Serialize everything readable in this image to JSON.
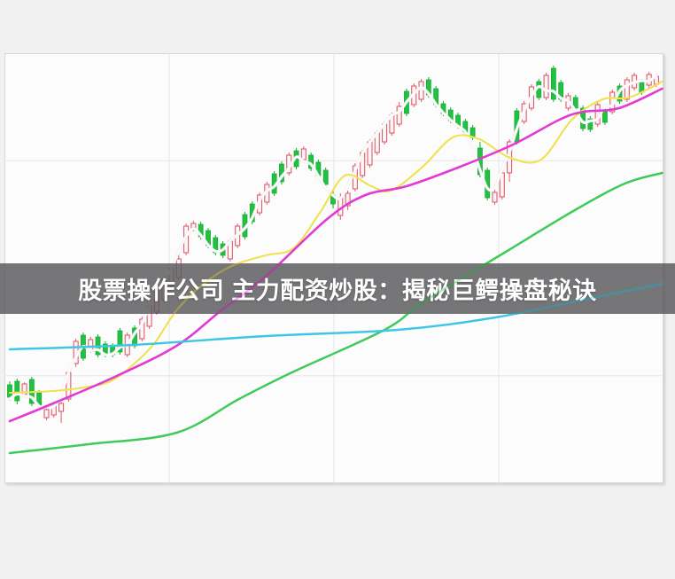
{
  "banner": {
    "text": "股票操作公司 主力配资炒股：揭秘巨鳄操盘秘诀",
    "bg_color": "rgba(88,88,90,0.82)",
    "text_color": "#ffffff"
  },
  "chart_data": {
    "type": "candlestick",
    "title": "",
    "xlabel": "",
    "ylabel": "",
    "x_count": 89,
    "ylim": [
      0,
      485
    ],
    "grid": {
      "h_divisions": 4,
      "v_divisions": 4,
      "color": "#e6e6e6"
    },
    "legend_position": "none",
    "style": {
      "up_color": "#e15c6c",
      "up_fill": "#fdf6f6",
      "down_color": "#14ae33",
      "down_fill": "#22c144",
      "up_style": "hollow",
      "down_style": "filled",
      "plot_bg": "#fcfcfc",
      "page_bg": "#f1f1f1"
    },
    "candles": [
      [
        111,
        115,
        93,
        97
      ],
      [
        115,
        118,
        89,
        93
      ],
      [
        100,
        114,
        97,
        112
      ],
      [
        117,
        120,
        87,
        90
      ],
      [
        102,
        105,
        85,
        88
      ],
      [
        74,
        86,
        71,
        83
      ],
      [
        77,
        89,
        74,
        87
      ],
      [
        81,
        92,
        68,
        90
      ],
      [
        95,
        128,
        92,
        125
      ],
      [
        135,
        163,
        131,
        160
      ],
      [
        167,
        170,
        138,
        141
      ],
      [
        150,
        165,
        147,
        162
      ],
      [
        165,
        168,
        142,
        145
      ],
      [
        157,
        160,
        142,
        145
      ],
      [
        155,
        158,
        142,
        145
      ],
      [
        172,
        175,
        145,
        148
      ],
      [
        145,
        170,
        142,
        167
      ],
      [
        175,
        178,
        152,
        155
      ],
      [
        163,
        188,
        160,
        185
      ],
      [
        177,
        203,
        174,
        200
      ],
      [
        193,
        218,
        190,
        215
      ],
      [
        207,
        233,
        204,
        230
      ],
      [
        223,
        245,
        220,
        242
      ],
      [
        232,
        258,
        229,
        253
      ],
      [
        260,
        293,
        257,
        290
      ],
      [
        287,
        296,
        284,
        293
      ],
      [
        292,
        295,
        275,
        278
      ],
      [
        285,
        288,
        265,
        268
      ],
      [
        277,
        280,
        257,
        260
      ],
      [
        270,
        273,
        254,
        257
      ],
      [
        253,
        276,
        250,
        273
      ],
      [
        268,
        293,
        265,
        290
      ],
      [
        303,
        306,
        275,
        278
      ],
      [
        315,
        318,
        292,
        295
      ],
      [
        305,
        328,
        302,
        325
      ],
      [
        317,
        340,
        314,
        337
      ],
      [
        349,
        352,
        324,
        327
      ],
      [
        360,
        363,
        337,
        340
      ],
      [
        350,
        373,
        347,
        370
      ],
      [
        375,
        378,
        354,
        357
      ],
      [
        365,
        380,
        362,
        377
      ],
      [
        370,
        373,
        352,
        355
      ],
      [
        362,
        365,
        344,
        347
      ],
      [
        353,
        356,
        334,
        337
      ],
      [
        325,
        330,
        310,
        315
      ],
      [
        302,
        327,
        297,
        322
      ],
      [
        313,
        330,
        308,
        327
      ],
      [
        332,
        361,
        329,
        358
      ],
      [
        347,
        376,
        344,
        373
      ],
      [
        359,
        388,
        356,
        385
      ],
      [
        373,
        398,
        370,
        395
      ],
      [
        385,
        408,
        382,
        405
      ],
      [
        395,
        418,
        392,
        415
      ],
      [
        405,
        430,
        402,
        425
      ],
      [
        442,
        445,
        414,
        417
      ],
      [
        427,
        451,
        424,
        448
      ],
      [
        433,
        456,
        430,
        453
      ],
      [
        455,
        458,
        435,
        438
      ],
      [
        445,
        448,
        424,
        427
      ],
      [
        428,
        431,
        414,
        417
      ],
      [
        421,
        424,
        406,
        409
      ],
      [
        415,
        418,
        400,
        403
      ],
      [
        408,
        411,
        393,
        396
      ],
      [
        401,
        404,
        387,
        390
      ],
      [
        378,
        385,
        345,
        348
      ],
      [
        353,
        356,
        319,
        322
      ],
      [
        317,
        331,
        314,
        328
      ],
      [
        323,
        353,
        320,
        350
      ],
      [
        350,
        388,
        340,
        385
      ],
      [
        420,
        423,
        382,
        385
      ],
      [
        408,
        431,
        405,
        428
      ],
      [
        423,
        450,
        420,
        447
      ],
      [
        453,
        456,
        432,
        435
      ],
      [
        435,
        463,
        432,
        460
      ],
      [
        468,
        471,
        430,
        433
      ],
      [
        452,
        455,
        430,
        433
      ],
      [
        423,
        440,
        420,
        437
      ],
      [
        435,
        438,
        420,
        423
      ],
      [
        423,
        426,
        397,
        400
      ],
      [
        411,
        414,
        396,
        399
      ],
      [
        405,
        430,
        402,
        427
      ],
      [
        421,
        424,
        404,
        407
      ],
      [
        419,
        444,
        416,
        441
      ],
      [
        448,
        451,
        428,
        431
      ],
      [
        433,
        458,
        430,
        455
      ],
      [
        446,
        463,
        443,
        460
      ],
      [
        453,
        456,
        438,
        441
      ],
      [
        449,
        464,
        446,
        461
      ],
      [
        450,
        462,
        447,
        459
      ]
    ],
    "lines": {
      "ma_short_white": {
        "color": "#ffffff",
        "width": 2,
        "from_closes": true
      },
      "ma_yellow": {
        "color": "#f0e24e",
        "width": 2.1,
        "points": [
          [
            0,
            102
          ],
          [
            5.9,
            104
          ],
          [
            10.1,
            108
          ],
          [
            13.7,
            115
          ],
          [
            16.7,
            133
          ],
          [
            19.7,
            158
          ],
          [
            22.7,
            195
          ],
          [
            26.4,
            225
          ],
          [
            30.2,
            245
          ],
          [
            34.8,
            257
          ],
          [
            38.6,
            265
          ],
          [
            42.2,
            305
          ],
          [
            45.6,
            347
          ],
          [
            49.2,
            335
          ],
          [
            51.9,
            330
          ],
          [
            56.2,
            357
          ],
          [
            60.3,
            390
          ],
          [
            63.9,
            388
          ],
          [
            68.1,
            367
          ],
          [
            72.3,
            365
          ],
          [
            76.5,
            410
          ],
          [
            80.7,
            433
          ],
          [
            84.3,
            435
          ],
          [
            88.8,
            453
          ]
        ]
      },
      "ma_magenta": {
        "color": "#e23ad5",
        "width": 2.6,
        "points": [
          [
            0,
            70
          ],
          [
            5.9,
            90
          ],
          [
            14.3,
            120
          ],
          [
            22.7,
            155
          ],
          [
            28.8,
            195
          ],
          [
            34.8,
            233
          ],
          [
            43.2,
            298
          ],
          [
            48.4,
            325
          ],
          [
            54,
            335
          ],
          [
            61.3,
            357
          ],
          [
            68.5,
            382
          ],
          [
            74.8,
            410
          ],
          [
            78.1,
            419
          ],
          [
            82.9,
            423
          ],
          [
            88.8,
            445
          ]
        ]
      },
      "ma_green": {
        "color": "#3fcb5a",
        "width": 2.5,
        "points": [
          [
            0,
            34
          ],
          [
            10.7,
            44
          ],
          [
            22.7,
            57
          ],
          [
            31.2,
            95
          ],
          [
            38.4,
            125
          ],
          [
            51,
            173
          ],
          [
            56.4,
            205
          ],
          [
            67.3,
            260
          ],
          [
            76.9,
            308
          ],
          [
            83.7,
            338
          ],
          [
            88.8,
            350
          ]
        ]
      },
      "ma_cyan": {
        "color": "#3fc6e4",
        "width": 2.5,
        "points": [
          [
            0,
            151
          ],
          [
            16.7,
            156
          ],
          [
            34.8,
            166
          ],
          [
            52.8,
            173
          ],
          [
            66.1,
            187
          ],
          [
            78.1,
            207
          ],
          [
            88.8,
            225
          ]
        ]
      }
    }
  }
}
